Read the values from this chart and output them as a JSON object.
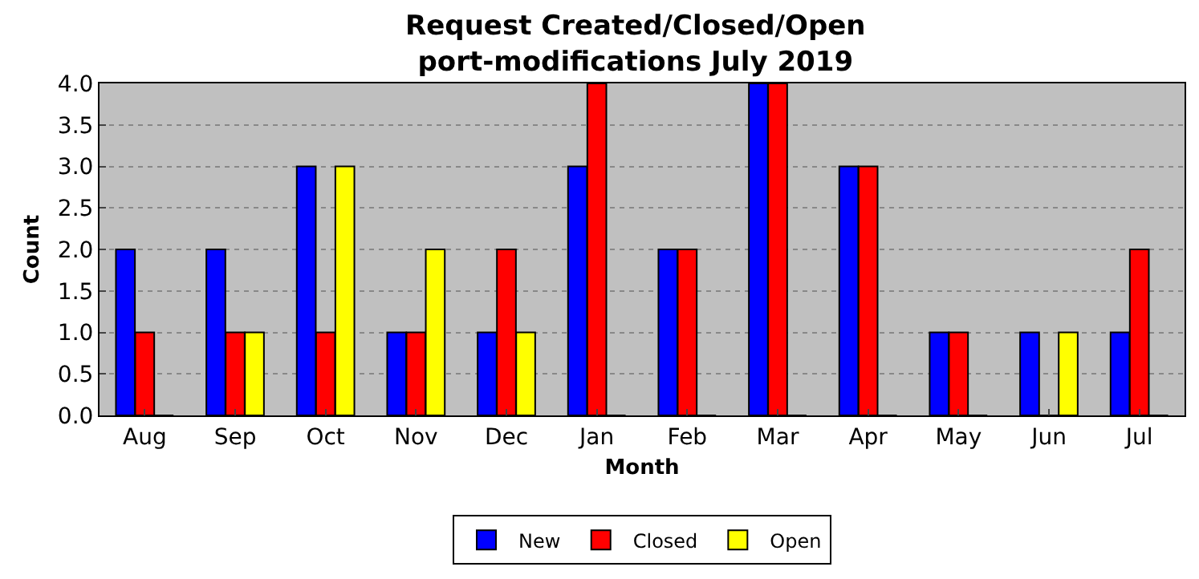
{
  "chart_data": {
    "type": "bar",
    "title": "Request Created/Closed/Open\nport-modifications July 2019",
    "xlabel": "Month",
    "ylabel": "Count",
    "categories": [
      "Aug",
      "Sep",
      "Oct",
      "Nov",
      "Dec",
      "Jan",
      "Feb",
      "Mar",
      "Apr",
      "May",
      "Jun",
      "Jul"
    ],
    "series": [
      {
        "name": "New",
        "color": "#0000ff",
        "values": [
          2,
          2,
          3,
          1,
          1,
          3,
          2,
          4,
          3,
          1,
          1,
          1
        ]
      },
      {
        "name": "Closed",
        "color": "#ff0000",
        "values": [
          1,
          1,
          1,
          1,
          2,
          4,
          2,
          4,
          3,
          1,
          0,
          2
        ]
      },
      {
        "name": "Open",
        "color": "#ffff00",
        "values": [
          0,
          1,
          3,
          2,
          1,
          0,
          0,
          0,
          0,
          0,
          1,
          0
        ]
      }
    ],
    "ylim": [
      0,
      4
    ],
    "yticks": [
      {
        "value": 0,
        "label": "0.0"
      },
      0.5,
      {
        "value": 1,
        "label": "1.0"
      },
      1.5,
      {
        "value": 2,
        "label": "2.0"
      },
      2.5,
      {
        "value": 3,
        "label": "3.0"
      },
      3.5,
      {
        "value": 4,
        "label": "4.0"
      }
    ],
    "grid": "y",
    "legend": "bottom"
  }
}
